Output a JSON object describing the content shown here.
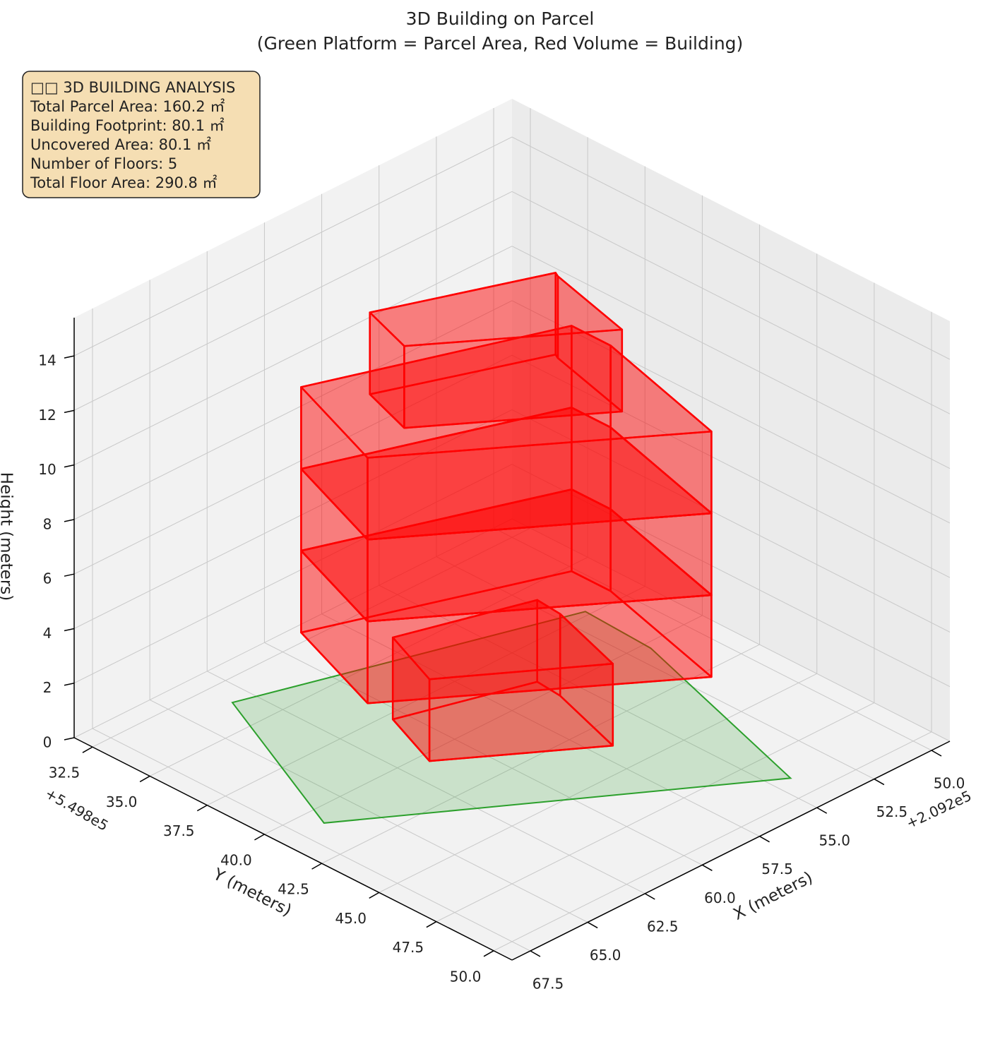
{
  "chart_data": {
    "type": "bar3d",
    "title": [
      "3D Building on Parcel",
      "(Green Platform = Parcel Area, Red Volume = Building)"
    ],
    "xlabel": "X (meters)",
    "ylabel": "Y (meters)",
    "zlabel": "Height (meters)",
    "x_offset": "+2.092e5",
    "y_offset": "+5.498e5",
    "xlim": [
      49.2,
      68.3
    ],
    "ylim": [
      31.7,
      50.8
    ],
    "zlim": [
      0,
      15.4
    ],
    "xticks": [
      {
        "value": 50,
        "label": "50.0"
      },
      {
        "value": 52.5,
        "label": "52.5"
      },
      {
        "value": 55,
        "label": "55.0"
      },
      {
        "value": 57.5,
        "label": "57.5"
      },
      {
        "value": 60,
        "label": "60.0"
      },
      {
        "value": 62.5,
        "label": "62.5"
      },
      {
        "value": 65,
        "label": "65.0"
      },
      {
        "value": 67.5,
        "label": "67.5"
      }
    ],
    "yticks": [
      {
        "value": 32.5,
        "label": "32.5"
      },
      {
        "value": 35,
        "label": "35.0"
      },
      {
        "value": 37.5,
        "label": "37.5"
      },
      {
        "value": 40,
        "label": "40.0"
      },
      {
        "value": 42.5,
        "label": "42.5"
      },
      {
        "value": 45,
        "label": "45.0"
      },
      {
        "value": 47.5,
        "label": "47.5"
      },
      {
        "value": 50,
        "label": "50.0"
      }
    ],
    "zticks": [
      0,
      2,
      4,
      6,
      8,
      10,
      12,
      14
    ],
    "grid": true,
    "parcel": {
      "color": "#2ca02c",
      "x": [
        63.3,
        66.5,
        54.3,
        51.75,
        51.6
      ],
      "y": [
        33.6,
        40.8,
        48.95,
        40.3,
        37.3
      ]
    },
    "building": {
      "color": "#ff0000",
      "floors": [
        {
          "z": [
            0,
            3
          ],
          "x": [
            60.5,
            55.7,
            55.8,
            56.8,
            61.5
          ],
          "y": [
            37.8,
            39.3,
            40.4,
            43.7,
            40.4
          ]
        },
        {
          "z": [
            3,
            6
          ],
          "x": [
            62.3,
            53.7,
            53.7,
            55.2,
            63.9
          ],
          "y": [
            35.6,
            38.8,
            40.5,
            46.4,
            40.1
          ]
        },
        {
          "z": [
            6,
            9
          ],
          "x": [
            62.3,
            53.7,
            53.7,
            55.2,
            63.9
          ],
          "y": [
            35.6,
            38.8,
            40.5,
            46.4,
            40.1
          ]
        },
        {
          "z": [
            9,
            12
          ],
          "x": [
            62.3,
            53.7,
            53.7,
            55.2,
            63.9
          ],
          "y": [
            35.6,
            38.8,
            40.5,
            46.4,
            40.1
          ]
        },
        {
          "z": [
            12,
            15
          ],
          "x": [
            61.1,
            55.3,
            55.4,
            56.3,
            61.8
          ],
          "y": [
            37.4,
            39.7,
            39.9,
            43.6,
            39.6
          ]
        }
      ]
    },
    "info_box": [
      "□□ 3D BUILDING ANALYSIS",
      "Total Parcel Area: 160.2 ㎡",
      "Building Footprint: 80.1 ㎡",
      "Uncovered Area: 80.1 ㎡",
      "Number of Floors: 5",
      "Total Floor Area: 290.8 ㎡"
    ]
  }
}
